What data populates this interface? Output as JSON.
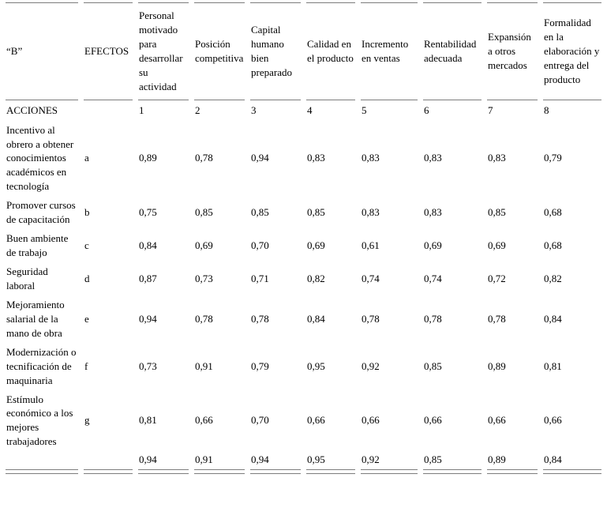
{
  "table": {
    "corner_label": "“B”",
    "effects_label": "EFECTOS",
    "actions_label": "ACCIONES",
    "effect_headers": [
      "Personal motivado para desarrollar su actividad",
      "Posición competitiva",
      "Capital humano bien preparado",
      "Calidad en el producto",
      "Incremento en ventas",
      "Rentabilidad adecuada",
      "Expansión a otros mercados",
      "Formalidad en la elaboración y entrega del producto"
    ],
    "effect_numbers": [
      "1",
      "2",
      "3",
      "4",
      "5",
      "6",
      "7",
      "8"
    ],
    "rows": [
      {
        "action": "Incentivo al obrero a obtener conocimientos académicos en tecnología",
        "effect": "a",
        "values": [
          "0,89",
          "0,78",
          "0,94",
          "0,83",
          "0,83",
          "0,83",
          "0,83",
          "0,79"
        ]
      },
      {
        "action": "Promover cursos de capacitación",
        "effect": "b",
        "values": [
          "0,75",
          "0,85",
          "0,85",
          "0,85",
          "0,83",
          "0,83",
          "0,85",
          "0,68"
        ]
      },
      {
        "action": "Buen ambiente de trabajo",
        "effect": "c",
        "values": [
          "0,84",
          "0,69",
          "0,70",
          "0,69",
          "0,61",
          "0,69",
          "0,69",
          "0,68"
        ]
      },
      {
        "action": "Seguridad laboral",
        "effect": "d",
        "values": [
          "0,87",
          "0,73",
          "0,71",
          "0,82",
          "0,74",
          "0,74",
          "0,72",
          "0,82"
        ]
      },
      {
        "action": "Mejoramiento salarial de la mano de obra",
        "effect": "e",
        "values": [
          "0,94",
          "0,78",
          "0,78",
          "0,84",
          "0,78",
          "0,78",
          "0,78",
          "0,84"
        ]
      },
      {
        "action": "Modernización o tecnificación de maquinaria",
        "effect": "f",
        "values": [
          "0,73",
          "0,91",
          "0,79",
          "0,95",
          "0,92",
          "0,85",
          "0,89",
          "0,81"
        ]
      },
      {
        "action": "Estímulo económico a los mejores trabajadores",
        "effect": "g",
        "values": [
          "0,81",
          "0,66",
          "0,70",
          "0,66",
          "0,66",
          "0,66",
          "0,66",
          "0,66"
        ]
      }
    ],
    "summary_row": {
      "action": "",
      "effect": "",
      "values": [
        "0,94",
        "0,91",
        "0,94",
        "0,95",
        "0,92",
        "0,85",
        "0,89",
        "0,84"
      ]
    },
    "colors": {
      "border": "#7d7d7d",
      "text": "#000000",
      "background": "#ffffff"
    }
  }
}
